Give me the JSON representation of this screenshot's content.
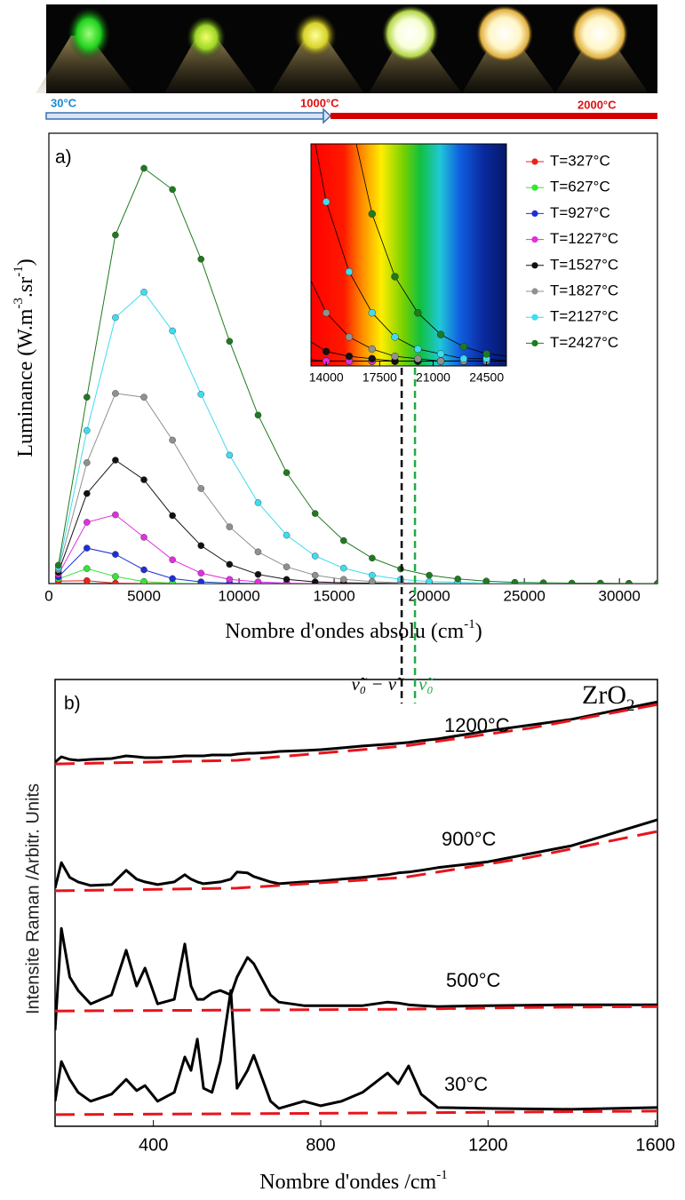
{
  "temperature_scale": {
    "labels": [
      "30°C",
      "1000°C",
      "2000°C"
    ]
  },
  "chart_data": [
    {
      "type": "line",
      "panel_label": "a)",
      "xlabel": [
        "Nombre d'ondes absolu (cm",
        "-1",
        ")"
      ],
      "ylabel": [
        "Luminance (W.m",
        "-3",
        ".sr",
        "-1",
        ")"
      ],
      "x": [
        500,
        2000,
        3500,
        5000,
        6500,
        8000,
        9500,
        11000,
        12500,
        14000,
        15500,
        17000,
        18500,
        20000,
        21500,
        23000,
        24500,
        26000,
        27500,
        29000,
        30500,
        32000
      ],
      "series": [
        {
          "name": "T=327°C",
          "color": "#e8231f",
          "values": [
            0.6,
            0.7,
            0.1,
            0,
            0,
            0,
            0,
            0,
            0,
            0,
            0,
            0,
            0,
            0,
            0,
            0,
            0,
            0,
            0,
            0,
            0,
            0
          ]
        },
        {
          "name": "T=627°C",
          "color": "#33e633",
          "values": [
            1.1,
            3.6,
            1.7,
            0.5,
            0.1,
            0,
            0,
            0,
            0,
            0,
            0,
            0,
            0,
            0,
            0,
            0,
            0,
            0,
            0,
            0,
            0,
            0
          ]
        },
        {
          "name": "T=927°C",
          "color": "#1f2fd6",
          "values": [
            1.6,
            8.5,
            7.0,
            3.3,
            1.2,
            0.4,
            0.1,
            0,
            0,
            0,
            0,
            0,
            0,
            0,
            0,
            0,
            0,
            0,
            0,
            0,
            0,
            0
          ]
        },
        {
          "name": "T=1227°C",
          "color": "#e02ee0",
          "values": [
            2.2,
            14.7,
            16.5,
            11.1,
            5.7,
            2.5,
            1.0,
            0.4,
            0.1,
            0,
            0,
            0,
            0,
            0,
            0,
            0,
            0,
            0,
            0,
            0,
            0,
            0
          ]
        },
        {
          "name": "T=1527°C",
          "color": "#111111",
          "values": [
            2.7,
            21.6,
            29.6,
            24.9,
            16.3,
            9.1,
            4.6,
            2.2,
            1.0,
            0.4,
            0.2,
            0.1,
            0,
            0,
            0,
            0,
            0,
            0,
            0,
            0,
            0,
            0
          ]
        },
        {
          "name": "T=1827°C",
          "color": "#909090",
          "values": [
            3.3,
            29.0,
            45.6,
            44.7,
            34.4,
            22.8,
            13.6,
            7.6,
            4.0,
            2.0,
            1.0,
            0.5,
            0.2,
            0.1,
            0,
            0,
            0,
            0,
            0,
            0,
            0,
            0
          ]
        },
        {
          "name": "T=2127°C",
          "color": "#3fdcef",
          "values": [
            3.8,
            36.7,
            63.8,
            69.9,
            60.6,
            45.4,
            30.8,
            19.4,
            11.6,
            6.6,
            3.7,
            2.0,
            1.0,
            0.5,
            0.3,
            0.1,
            0.1,
            0,
            0,
            0,
            0,
            0
          ]
        },
        {
          "name": "T=2427°C",
          "color": "#1f7a1f",
          "values": [
            4.4,
            44.7,
            83.6,
            99.6,
            94.5,
            77.8,
            58.1,
            40.4,
            26.6,
            16.8,
            10.3,
            6.1,
            3.5,
            2.0,
            1.1,
            0.6,
            0.3,
            0.2,
            0.1,
            0.1,
            0,
            0
          ]
        }
      ],
      "xlim": [
        0,
        32000
      ],
      "ylim": [
        0,
        108
      ],
      "xticks": [
        0,
        5000,
        10000,
        15000,
        20000,
        25000,
        30000
      ],
      "legend": "upper right",
      "inset": {
        "xlim": [
          13000,
          25800
        ],
        "ylim": [
          -0.2,
          9
        ],
        "xticks": [
          14000,
          17500,
          21000,
          24500
        ]
      },
      "markers": [
        {
          "x": 18550,
          "color": "#000000",
          "label": "ν̃₀ − ν̃"
        },
        {
          "x": 19250,
          "color": "#22aa44",
          "label": "ν̃₀"
        }
      ]
    },
    {
      "type": "line",
      "panel_label": "b)",
      "title": [
        "ZrO",
        "2"
      ],
      "xlabel": [
        "Nombre d'ondes /cm",
        "-1"
      ],
      "ylabel": "Intensite Raman /Arbitr. Units",
      "x": [
        165,
        180,
        200,
        220,
        250,
        300,
        335,
        360,
        380,
        410,
        450,
        475,
        490,
        505,
        520,
        540,
        560,
        585,
        600,
        625,
        640,
        680,
        700,
        760,
        800,
        850,
        900,
        960,
        985,
        1010,
        1040,
        1080,
        1200,
        1400,
        1605
      ],
      "series": [
        {
          "name": "30°C",
          "color": "#000000",
          "values": [
            5.6,
            14.5,
            10.5,
            7.6,
            5.6,
            7.2,
            10.5,
            8.0,
            9.1,
            5.6,
            7.6,
            15.5,
            12.5,
            19.5,
            8.5,
            7.6,
            14.5,
            30.4,
            8.5,
            12.5,
            15.9,
            5.6,
            4.0,
            5.6,
            4.6,
            5.6,
            7.6,
            11.9,
            9.5,
            13.5,
            7.2,
            4.2,
            4.0,
            3.8,
            4.2
          ]
        },
        {
          "name": "500°C",
          "color": "#000000",
          "values": [
            21.5,
            44.3,
            33.4,
            30.4,
            27.4,
            29.4,
            39.4,
            31.4,
            35.4,
            27.4,
            28.4,
            40.8,
            31.4,
            28.4,
            28.4,
            29.8,
            30.4,
            29.4,
            33.4,
            37.8,
            36.4,
            29.4,
            27.8,
            27.0,
            27.0,
            27.0,
            27.0,
            27.8,
            27.6,
            27.2,
            27.0,
            26.8,
            27.0,
            27.2,
            27.2
          ]
        },
        {
          "name": "900°C",
          "color": "#000000",
          "values": [
            53.3,
            59.0,
            55.7,
            54.7,
            53.9,
            54.1,
            57.3,
            55.3,
            54.7,
            54.1,
            54.7,
            56.3,
            55.3,
            54.7,
            54.3,
            54.5,
            54.7,
            55.3,
            56.9,
            56.7,
            55.9,
            54.7,
            54.3,
            54.7,
            54.9,
            55.3,
            55.7,
            56.3,
            56.7,
            56.9,
            57.3,
            57.9,
            59.2,
            62.8,
            68.6
          ]
        },
        {
          "name": "1200°C",
          "color": "#000000",
          "values": [
            81.5,
            82.7,
            82.1,
            81.9,
            82.1,
            82.3,
            82.9,
            82.7,
            82.5,
            82.5,
            82.7,
            82.9,
            82.9,
            82.9,
            82.9,
            83.1,
            83.1,
            83.1,
            83.3,
            83.5,
            83.5,
            83.7,
            83.9,
            84.1,
            84.3,
            84.7,
            85.1,
            85.5,
            85.7,
            85.9,
            86.3,
            86.7,
            88.5,
            91.1,
            95.0
          ]
        },
        {
          "color": "#e8141c",
          "dashed": true,
          "x": [
            165,
            600,
            1000,
            1300,
            1605
          ],
          "values": [
            2.6,
            2.8,
            3.0,
            3.2,
            3.4
          ]
        },
        {
          "color": "#e8141c",
          "dashed": true,
          "x": [
            165,
            600,
            1000,
            1300,
            1605
          ],
          "values": [
            25.8,
            26.0,
            26.2,
            26.6,
            26.8
          ]
        },
        {
          "color": "#e8141c",
          "dashed": true,
          "x": [
            165,
            600,
            1000,
            1300,
            1605
          ],
          "values": [
            52.7,
            53.3,
            55.7,
            60.2,
            66.0
          ]
        },
        {
          "color": "#e8141c",
          "dashed": true,
          "x": [
            165,
            600,
            1000,
            1300,
            1605
          ],
          "values": [
            81.1,
            81.9,
            85.1,
            89.1,
            94.4
          ]
        }
      ],
      "xlim": [
        165,
        1605
      ],
      "ylim": [
        0,
        100
      ],
      "xticks": [
        400,
        800,
        1200,
        1600
      ]
    }
  ]
}
